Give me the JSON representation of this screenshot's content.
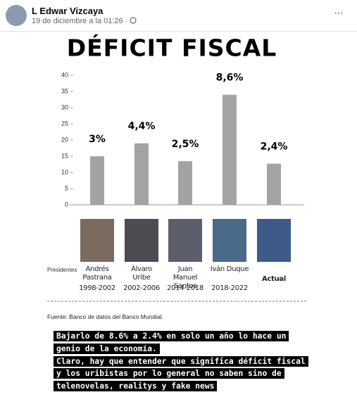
{
  "post": {
    "author": "L Edwar Vizcaya",
    "timestamp": "19 de diciembre a la 01:26 · ",
    "menu": "···"
  },
  "chart_data": {
    "type": "bar",
    "title": "DÉFICIT FISCAL",
    "categories": [
      "Andrés Pastrana",
      "Álvaro Uribe",
      "Juan Manuel Santos",
      "Iván Duque",
      "Actual"
    ],
    "periods": [
      "1998-2002",
      "2002-2006",
      "2014-2018",
      "2018-2022",
      null
    ],
    "values": [
      15,
      19,
      13.5,
      34,
      12.7
    ],
    "annotations": [
      "3%",
      "4,4%",
      "2,5%",
      "8,6%",
      "2,4%"
    ],
    "color": "#a3a3a3",
    "ylim": [
      0,
      40
    ],
    "yticks": [
      0,
      5,
      10,
      15,
      20,
      25,
      30,
      35,
      40
    ],
    "grid": false,
    "row_label": "Presidentes",
    "source": "Fuente: Banco de datos del Banco Mundial."
  },
  "caption": {
    "lines": [
      "Bajarlo de 8.6% a 2.4% en solo un año lo hace un",
      "genio de la economía.",
      "Claro, hay que entender que significa déficit fiscal",
      "y los uribistas por lo general no saben sino de",
      "telenovelas, realitys y fake news"
    ]
  }
}
